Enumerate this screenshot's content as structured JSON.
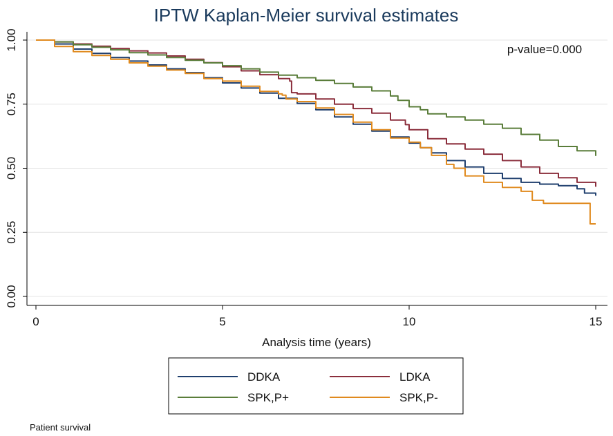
{
  "chart_data": {
    "type": "line",
    "title": "IPTW Kaplan-Meier survival estimates",
    "xlabel": "Analysis time (years)",
    "ylabel": "",
    "xlim": [
      0,
      15
    ],
    "ylim": [
      0,
      1
    ],
    "x_ticks": [
      "0",
      "5",
      "10",
      "15"
    ],
    "y_ticks": [
      "0.00",
      "0.25",
      "0.50",
      "0.75",
      "1.00"
    ],
    "grid": true,
    "legend_position": "bottom",
    "annotation": "p-value=0.000",
    "note": "Patient survival",
    "series": [
      {
        "name": "DDKA",
        "color": "#1f3f6e",
        "points": [
          [
            0,
            1.0
          ],
          [
            0.5,
            0.985
          ],
          [
            1,
            0.965
          ],
          [
            1.5,
            0.948
          ],
          [
            2,
            0.932
          ],
          [
            2.5,
            0.918
          ],
          [
            3,
            0.903
          ],
          [
            3.5,
            0.888
          ],
          [
            4,
            0.873
          ],
          [
            4.5,
            0.853
          ],
          [
            5,
            0.833
          ],
          [
            5.5,
            0.813
          ],
          [
            6,
            0.793
          ],
          [
            6.5,
            0.773
          ],
          [
            7,
            0.753
          ],
          [
            7.5,
            0.728
          ],
          [
            8,
            0.7
          ],
          [
            8.5,
            0.672
          ],
          [
            9,
            0.645
          ],
          [
            9.5,
            0.622
          ],
          [
            10,
            0.598
          ],
          [
            10.3,
            0.58
          ],
          [
            10.6,
            0.56
          ],
          [
            11,
            0.53
          ],
          [
            11.5,
            0.505
          ],
          [
            12,
            0.48
          ],
          [
            12.5,
            0.46
          ],
          [
            13,
            0.445
          ],
          [
            13.5,
            0.438
          ],
          [
            14,
            0.432
          ],
          [
            14.5,
            0.42
          ],
          [
            14.7,
            0.403
          ],
          [
            15,
            0.393
          ]
        ]
      },
      {
        "name": "LDKA",
        "color": "#8b2e3c",
        "points": [
          [
            0,
            1.0
          ],
          [
            0.5,
            0.993
          ],
          [
            1,
            0.985
          ],
          [
            1.5,
            0.976
          ],
          [
            2,
            0.967
          ],
          [
            2.5,
            0.958
          ],
          [
            3,
            0.95
          ],
          [
            3.5,
            0.938
          ],
          [
            4,
            0.925
          ],
          [
            4.5,
            0.912
          ],
          [
            5,
            0.896
          ],
          [
            5.5,
            0.88
          ],
          [
            6,
            0.865
          ],
          [
            6.5,
            0.85
          ],
          [
            6.8,
            0.84
          ],
          [
            6.85,
            0.795
          ],
          [
            7,
            0.79
          ],
          [
            7.5,
            0.77
          ],
          [
            8,
            0.75
          ],
          [
            8.5,
            0.733
          ],
          [
            9,
            0.715
          ],
          [
            9.5,
            0.688
          ],
          [
            9.9,
            0.67
          ],
          [
            10,
            0.65
          ],
          [
            10.5,
            0.615
          ],
          [
            11,
            0.595
          ],
          [
            11.5,
            0.575
          ],
          [
            12,
            0.555
          ],
          [
            12.5,
            0.53
          ],
          [
            13,
            0.505
          ],
          [
            13.5,
            0.48
          ],
          [
            14,
            0.463
          ],
          [
            14.5,
            0.445
          ],
          [
            15,
            0.428
          ]
        ]
      },
      {
        "name": "SPK,P+",
        "color": "#5a7d3a",
        "points": [
          [
            0,
            1.0
          ],
          [
            0.5,
            0.993
          ],
          [
            1,
            0.982
          ],
          [
            1.5,
            0.972
          ],
          [
            2,
            0.962
          ],
          [
            2.5,
            0.951
          ],
          [
            3,
            0.942
          ],
          [
            3.5,
            0.932
          ],
          [
            4,
            0.921
          ],
          [
            4.5,
            0.911
          ],
          [
            5,
            0.9
          ],
          [
            5.5,
            0.888
          ],
          [
            6,
            0.875
          ],
          [
            6.5,
            0.863
          ],
          [
            7,
            0.853
          ],
          [
            7.5,
            0.843
          ],
          [
            8,
            0.831
          ],
          [
            8.5,
            0.817
          ],
          [
            9,
            0.802
          ],
          [
            9.5,
            0.782
          ],
          [
            9.7,
            0.765
          ],
          [
            10,
            0.74
          ],
          [
            10.3,
            0.728
          ],
          [
            10.5,
            0.712
          ],
          [
            11,
            0.7
          ],
          [
            11.5,
            0.688
          ],
          [
            12,
            0.672
          ],
          [
            12.5,
            0.656
          ],
          [
            13,
            0.632
          ],
          [
            13.5,
            0.61
          ],
          [
            14,
            0.585
          ],
          [
            14.5,
            0.568
          ],
          [
            15,
            0.548
          ]
        ]
      },
      {
        "name": "SPK,P-",
        "color": "#e08a1e",
        "points": [
          [
            0,
            1.0
          ],
          [
            0.3,
            1.0
          ],
          [
            0.5,
            0.975
          ],
          [
            1,
            0.955
          ],
          [
            1.5,
            0.94
          ],
          [
            2,
            0.925
          ],
          [
            2.5,
            0.911
          ],
          [
            3,
            0.898
          ],
          [
            3.5,
            0.883
          ],
          [
            4,
            0.87
          ],
          [
            4.5,
            0.85
          ],
          [
            5,
            0.84
          ],
          [
            5.5,
            0.82
          ],
          [
            6,
            0.8
          ],
          [
            6.5,
            0.79
          ],
          [
            6.6,
            0.785
          ],
          [
            6.7,
            0.77
          ],
          [
            7,
            0.76
          ],
          [
            7.5,
            0.735
          ],
          [
            8,
            0.71
          ],
          [
            8.5,
            0.68
          ],
          [
            9,
            0.65
          ],
          [
            9.5,
            0.618
          ],
          [
            10,
            0.602
          ],
          [
            10.3,
            0.58
          ],
          [
            10.6,
            0.55
          ],
          [
            11,
            0.515
          ],
          [
            11.2,
            0.5
          ],
          [
            11.5,
            0.47
          ],
          [
            12,
            0.445
          ],
          [
            12.5,
            0.425
          ],
          [
            13,
            0.41
          ],
          [
            13.3,
            0.375
          ],
          [
            13.6,
            0.363
          ],
          [
            14,
            0.363
          ],
          [
            14.5,
            0.363
          ],
          [
            14.8,
            0.363
          ],
          [
            14.85,
            0.283
          ],
          [
            15,
            0.283
          ]
        ]
      }
    ]
  }
}
